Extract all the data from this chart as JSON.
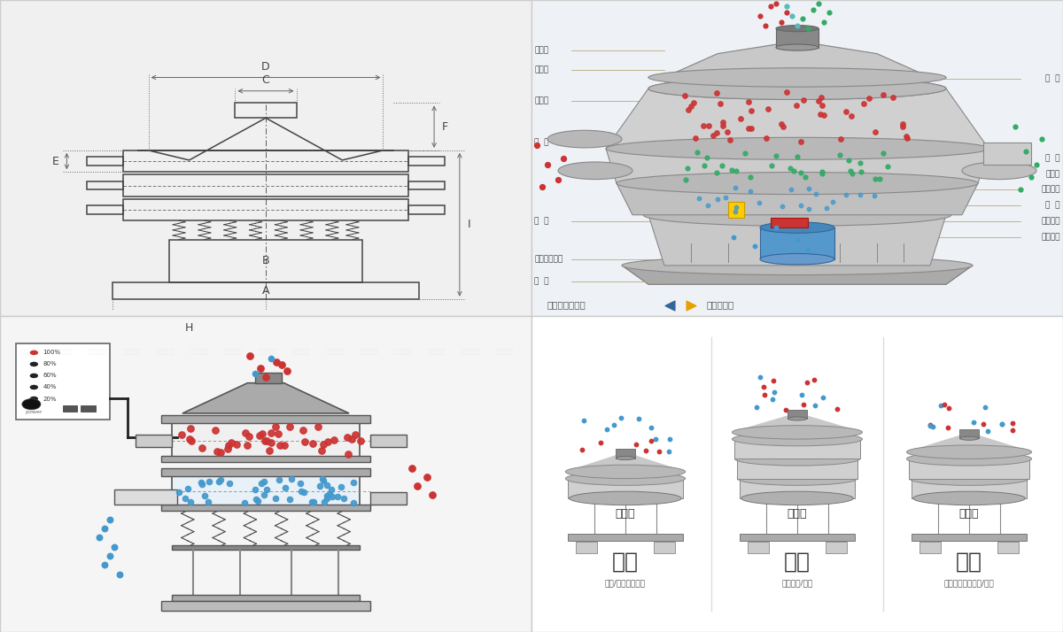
{
  "bg_color": "#ffffff",
  "panel_tl_bg": "#f0f0f0",
  "panel_tr_bg": "#eef2f6",
  "panel_bl_bg": "#f5f5f5",
  "panel_br_bg": "#ffffff",
  "border_color": "#cccccc",
  "lc": "#444444",
  "dim_color": "#666666",
  "label_line_color": "#b8a880",
  "red_color": "#cc3333",
  "blue_color": "#4499cc",
  "green_color": "#33aa66",
  "teal_color": "#55bbbb",
  "left_labels": [
    "进料口",
    "防尘盖",
    "出料口",
    "束  环",
    "弹  簧",
    "运输固定螺栓",
    "机  座"
  ],
  "right_labels": [
    "筛  网",
    "网  架",
    "加重块",
    "上部重锤",
    "筛  盘",
    "振动电机",
    "下部重锤"
  ],
  "bottom_labels": [
    "单层式",
    "三层式",
    "双层式"
  ],
  "function_labels": [
    "分级",
    "过滤",
    "除杂"
  ],
  "function_descs": [
    "颗粒/粉末准确分级",
    "去除异物/结块",
    "去除液体中的颗粒/异物"
  ],
  "nav_left": "外形尺寸示意图",
  "nav_right": "结构示意图"
}
